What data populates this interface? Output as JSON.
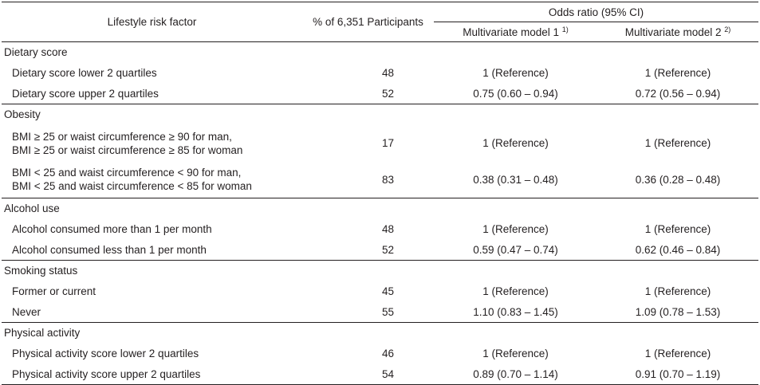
{
  "table": {
    "headers": {
      "factor": "Lifestyle risk factor",
      "participants": "% of 6,351 Participants",
      "odds": "Odds ratio (95% CI)",
      "model1": "Multivariate model 1",
      "model1_note": "1)",
      "model2": "Multivariate model 2",
      "model2_note": "2)"
    },
    "groups": [
      {
        "title": "Dietary score",
        "rows": [
          {
            "label": [
              "Dietary score lower 2 quartiles"
            ],
            "pct": "48",
            "m1": "1 (Reference)",
            "m2": "1 (Reference)"
          },
          {
            "label": [
              "Dietary score upper 2 quartiles"
            ],
            "pct": "52",
            "m1": "0.75 (0.60 – 0.94)",
            "m2": "0.72 (0.56 – 0.94)"
          }
        ]
      },
      {
        "title": "Obesity",
        "rows": [
          {
            "label": [
              "BMI ≥ 25 or waist circumference ≥ 90 for man,",
              "BMI ≥ 25 or waist circumference ≥ 85 for woman"
            ],
            "pct": "17",
            "m1": "1 (Reference)",
            "m2": "1 (Reference)"
          },
          {
            "label": [
              "BMI < 25 and waist circumference < 90 for man,",
              "BMI < 25 and waist circumference < 85 for woman"
            ],
            "pct": "83",
            "m1": "0.38 (0.31 – 0.48)",
            "m2": "0.36 (0.28 – 0.48)"
          }
        ]
      },
      {
        "title": "Alcohol use",
        "rows": [
          {
            "label": [
              "Alcohol consumed more than 1 per month"
            ],
            "pct": "48",
            "m1": "1 (Reference)",
            "m2": "1 (Reference)"
          },
          {
            "label": [
              "Alcohol consumed less than 1 per month"
            ],
            "pct": "52",
            "m1": "0.59 (0.47 – 0.74)",
            "m2": "0.62 (0.46 – 0.84)"
          }
        ]
      },
      {
        "title": "Smoking status",
        "rows": [
          {
            "label": [
              "Former or current"
            ],
            "pct": "45",
            "m1": "1 (Reference)",
            "m2": "1 (Reference)"
          },
          {
            "label": [
              "Never"
            ],
            "pct": "55",
            "m1": "1.10 (0.83 – 1.45)",
            "m2": "1.09 (0.78 – 1.53)"
          }
        ]
      },
      {
        "title": "Physical activity",
        "rows": [
          {
            "label": [
              "Physical activity score lower 2 quartiles"
            ],
            "pct": "46",
            "m1": "1 (Reference)",
            "m2": "1 (Reference)"
          },
          {
            "label": [
              "Physical activity score upper 2 quartiles"
            ],
            "pct": "54",
            "m1": "0.89 (0.70 – 1.14)",
            "m2": "0.91 (0.70 – 1.19)"
          }
        ]
      }
    ]
  }
}
